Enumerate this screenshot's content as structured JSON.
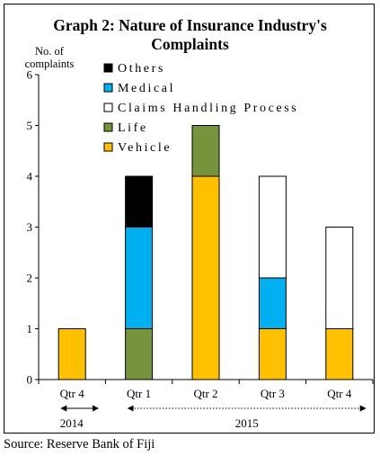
{
  "chart_data": {
    "type": "bar",
    "stacked": true,
    "title": "Graph 2: Nature of Insurance Industry's Complaints",
    "title_lines": [
      "Graph 2: Nature of Insurance Industry's",
      "Complaints"
    ],
    "ylabel_lines": [
      "No. of",
      "complaints"
    ],
    "ylim": [
      0,
      6
    ],
    "yticks": [
      0,
      1,
      2,
      3,
      4,
      5,
      6
    ],
    "grid": false,
    "categories": [
      "Qtr  4",
      "Qtr 1",
      "Qtr 2",
      "Qtr 3",
      "Qtr 4"
    ],
    "year_groups": [
      {
        "label": "2014",
        "from": 0,
        "to": 0
      },
      {
        "label": "2015",
        "from": 1,
        "to": 4
      }
    ],
    "legend_position": "top-left",
    "legend_order": [
      "Others",
      "Medical",
      "Claims Handling Process",
      "Life",
      "Vehicle"
    ],
    "series": [
      {
        "name": "Vehicle",
        "color": "#ffc000",
        "values": [
          1,
          0,
          4,
          1,
          1
        ]
      },
      {
        "name": "Life",
        "color": "#77933c",
        "values": [
          0,
          1,
          1,
          0,
          0
        ]
      },
      {
        "name": "Medical",
        "color": "#00b0f0",
        "values": [
          0,
          2,
          0,
          1,
          0
        ]
      },
      {
        "name": "Others",
        "color": "#000000",
        "values": [
          0,
          1,
          0,
          0,
          0
        ]
      },
      {
        "name": "Claims Handling Process",
        "color": "#ffffff",
        "values": [
          0,
          0,
          0,
          2,
          2
        ]
      }
    ]
  },
  "source": "Source: Reserve Bank of Fiji"
}
